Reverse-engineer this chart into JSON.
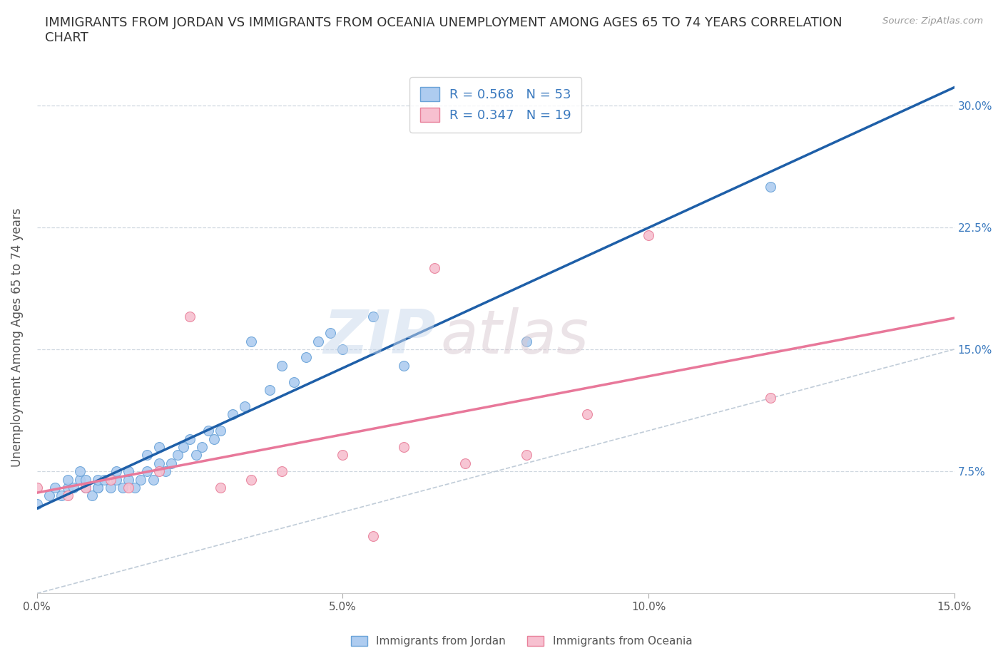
{
  "title": "IMMIGRANTS FROM JORDAN VS IMMIGRANTS FROM OCEANIA UNEMPLOYMENT AMONG AGES 65 TO 74 YEARS CORRELATION\nCHART",
  "source": "Source: ZipAtlas.com",
  "ylabel": "Unemployment Among Ages 65 to 74 years",
  "xlim": [
    0.0,
    0.15
  ],
  "ylim": [
    0.0,
    0.315
  ],
  "xticks": [
    0.0,
    0.05,
    0.1,
    0.15
  ],
  "xtick_labels": [
    "0.0%",
    "5.0%",
    "10.0%",
    "15.0%"
  ],
  "yticks_right": [
    0.075,
    0.15,
    0.225,
    0.3
  ],
  "ytick_labels_right": [
    "7.5%",
    "15.0%",
    "22.5%",
    "30.0%"
  ],
  "jordan_color": "#aeccf0",
  "jordan_edge_color": "#6aa3d8",
  "jordan_line_color": "#1e5fa8",
  "oceania_color": "#f7c0d0",
  "oceania_edge_color": "#e8809a",
  "oceania_line_color": "#e8789a",
  "ref_line_color": "#c0ccd8",
  "jordan_R": 0.568,
  "jordan_N": 53,
  "oceania_R": 0.347,
  "oceania_N": 19,
  "jordan_x": [
    0.0,
    0.002,
    0.003,
    0.004,
    0.005,
    0.005,
    0.006,
    0.007,
    0.007,
    0.008,
    0.008,
    0.009,
    0.01,
    0.01,
    0.01,
    0.011,
    0.012,
    0.013,
    0.013,
    0.014,
    0.015,
    0.015,
    0.016,
    0.017,
    0.018,
    0.018,
    0.019,
    0.02,
    0.02,
    0.021,
    0.022,
    0.023,
    0.024,
    0.025,
    0.026,
    0.027,
    0.028,
    0.029,
    0.03,
    0.032,
    0.034,
    0.035,
    0.038,
    0.04,
    0.042,
    0.044,
    0.046,
    0.048,
    0.05,
    0.055,
    0.06,
    0.08,
    0.12
  ],
  "jordan_y": [
    0.055,
    0.06,
    0.065,
    0.06,
    0.065,
    0.07,
    0.065,
    0.07,
    0.075,
    0.065,
    0.07,
    0.06,
    0.065,
    0.065,
    0.07,
    0.07,
    0.065,
    0.07,
    0.075,
    0.065,
    0.07,
    0.075,
    0.065,
    0.07,
    0.075,
    0.085,
    0.07,
    0.08,
    0.09,
    0.075,
    0.08,
    0.085,
    0.09,
    0.095,
    0.085,
    0.09,
    0.1,
    0.095,
    0.1,
    0.11,
    0.115,
    0.155,
    0.125,
    0.14,
    0.13,
    0.145,
    0.155,
    0.16,
    0.15,
    0.17,
    0.14,
    0.155,
    0.25
  ],
  "oceania_x": [
    0.0,
    0.005,
    0.008,
    0.012,
    0.015,
    0.02,
    0.025,
    0.03,
    0.035,
    0.04,
    0.05,
    0.055,
    0.06,
    0.065,
    0.07,
    0.08,
    0.09,
    0.1,
    0.12
  ],
  "oceania_y": [
    0.065,
    0.06,
    0.065,
    0.07,
    0.065,
    0.075,
    0.17,
    0.065,
    0.07,
    0.075,
    0.085,
    0.035,
    0.09,
    0.2,
    0.08,
    0.085,
    0.11,
    0.22,
    0.12
  ],
  "watermark_1": "ZIP",
  "watermark_2": "atlas",
  "marker_size": 100,
  "title_fontsize": 13,
  "axis_label_fontsize": 12,
  "tick_fontsize": 11,
  "legend_fontsize": 13
}
